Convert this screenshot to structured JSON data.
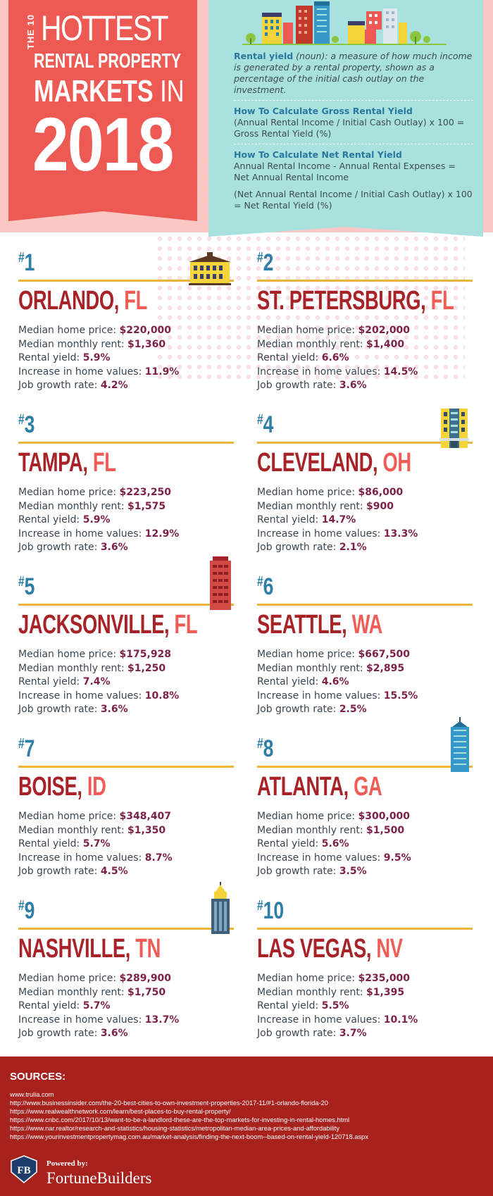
{
  "title": {
    "the10": "THE 10",
    "hottest": "HOTTEST",
    "line2": "RENTAL PROPERTY",
    "line3_markets": "MARKETS",
    "line3_in": "IN",
    "year": "2018"
  },
  "definitions": {
    "term": "Rental yield",
    "pos": " (noun): ",
    "definition": "a measure of how much income is generated by a rental property, shown as a percentage of the initial cash outlay on the investment.",
    "gross_heading": "How To Calculate Gross Rental Yield",
    "gross_formula": "(Annual Rental Income / Initial Cash Outlay) x 100 = Gross Rental Yield (%)",
    "net_heading": "How To Calculate Net Rental Yield",
    "net_formula_1": "Annual Rental Income - Annual Rental Expenses = Net Annual Rental Income",
    "net_formula_2": "(Net Annual Rental Income / Initial Cash Outlay) x 100 = Net Rental Yield (%)"
  },
  "labels": {
    "price": "Median home price: ",
    "rent": "Median monthly rent: ",
    "yield": "Rental yield: ",
    "increase": "Increase in home values: ",
    "jobs": "Job growth rate: "
  },
  "cities": [
    {
      "rank": "1",
      "city": "ORLANDO,",
      "state": "FL",
      "price": "$220,000",
      "rent": "$1,360",
      "yield": "5.9%",
      "increase": "11.9%",
      "jobs": "4.2%"
    },
    {
      "rank": "2",
      "city": "ST. PETERSBURG,",
      "state": "FL",
      "price": "$202,000",
      "rent": "$1,400",
      "yield": "6.6%",
      "increase": "14.5%",
      "jobs": "3.6%"
    },
    {
      "rank": "3",
      "city": "TAMPA,",
      "state": "FL",
      "price": "$223,250",
      "rent": "$1,575",
      "yield": "5.9%",
      "increase": "12.9%",
      "jobs": "3.6%"
    },
    {
      "rank": "4",
      "city": "CLEVELAND,",
      "state": "OH",
      "price": "$86,000",
      "rent": "$900",
      "yield": "14.7%",
      "increase": "13.3%",
      "jobs": "2.1%"
    },
    {
      "rank": "5",
      "city": "JACKSONVILLE,",
      "state": "FL",
      "price": "$175,928",
      "rent": "$1,250",
      "yield": "7.4%",
      "increase": "10.8%",
      "jobs": "3.6%"
    },
    {
      "rank": "6",
      "city": "SEATTLE,",
      "state": "WA",
      "price": "$667,500",
      "rent": "$2,895",
      "yield": "4.6%",
      "increase": "15.5%",
      "jobs": "2.5%"
    },
    {
      "rank": "7",
      "city": "BOISE,",
      "state": "ID",
      "price": "$348,407",
      "rent": "$1,350",
      "yield": "5.7%",
      "increase": "8.7%",
      "jobs": "4.5%"
    },
    {
      "rank": "8",
      "city": "ATLANTA,",
      "state": "GA",
      "price": "$300,000",
      "rent": "$1,500",
      "yield": "5.6%",
      "increase": "9.5%",
      "jobs": "3.5%"
    },
    {
      "rank": "9",
      "city": "NASHVILLE,",
      "state": "TN",
      "price": "$289,900",
      "rent": "$1,750",
      "yield": "5.7%",
      "increase": "13.7%",
      "jobs": "3.6%"
    },
    {
      "rank": "10",
      "city": "LAS VEGAS,",
      "state": "NV",
      "price": "$235,000",
      "rent": "$1,395",
      "yield": "5.5%",
      "increase": "10.1%",
      "jobs": "3.7%"
    }
  ],
  "sources": {
    "heading": "SOURCES:",
    "items": [
      "www.trulia.com",
      "http://www.businessinsider.com/the-20-best-cities-to-own-investment-properties-2017-11/#1-orlando-florida-20",
      "https://www.realwealthnetwork.com/learn/best-places-to-buy-rental-property/",
      "https://www.cnbc.com/2017/10/13/want-to-be-a-landlord-these-are-the-top-markets-for-investing-in-rental-homes.html",
      "https://www.nar.realtor/research-and-statistics/housing-statistics/metropolitan-median-area-prices-and-affordability",
      "https://www.yourinvestmentpropertymag.com.au/market-analysis/finding-the-next-boom--based-on-rental-yield-120718.aspx"
    ]
  },
  "brand": {
    "powered_by": "Powered by:",
    "name": "FortuneBuilders",
    "logo_text": "FB"
  },
  "colors": {
    "banner": "#ed5a54",
    "teal_box": "#a9e1df",
    "rank_blue": "#2f7ea6",
    "city_red": "#a72327",
    "state_coral": "#ef5d56",
    "rule_gold": "#e9b53c",
    "footer_red": "#a7211d"
  }
}
